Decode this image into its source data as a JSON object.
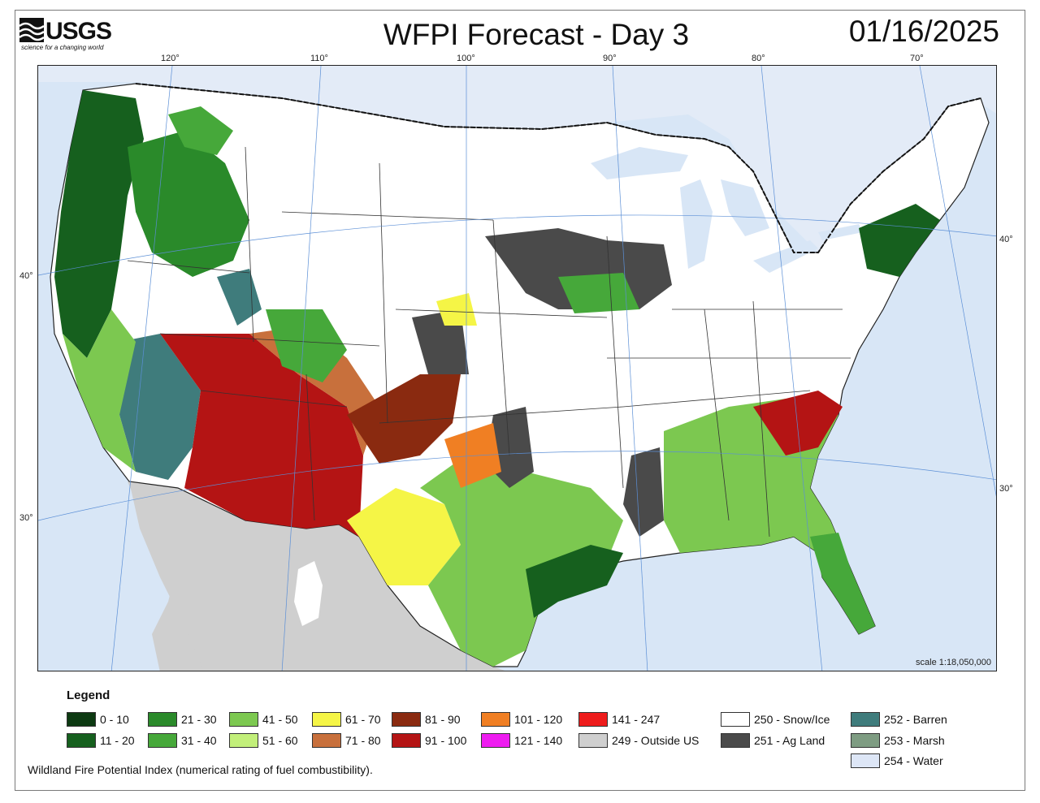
{
  "header": {
    "logo_text": "USGS",
    "logo_tagline": "science for a changing world",
    "title": "WFPI Forecast - Day 3",
    "date": "01/16/2025"
  },
  "graticule": {
    "longitudes": [
      "120°",
      "110°",
      "100°",
      "90°",
      "80°",
      "70°"
    ],
    "latitudes": [
      "40°",
      "30°"
    ]
  },
  "map": {
    "scale": "scale 1:18,050,000"
  },
  "legend": {
    "title": "Legend",
    "items": [
      {
        "label": "0 - 10",
        "color": "#0d3a12"
      },
      {
        "label": "11 - 20",
        "color": "#16601e"
      },
      {
        "label": "21 - 30",
        "color": "#2a8a2a"
      },
      {
        "label": "31 - 40",
        "color": "#46a83a"
      },
      {
        "label": "41 - 50",
        "color": "#7cc850"
      },
      {
        "label": "51 - 60",
        "color": "#c2ef7a"
      },
      {
        "label": "61 - 70",
        "color": "#f5f546"
      },
      {
        "label": "71 - 80",
        "color": "#c8703c"
      },
      {
        "label": "81 - 90",
        "color": "#8a2a10"
      },
      {
        "label": "91 - 100",
        "color": "#b41414"
      },
      {
        "label": "101 - 120",
        "color": "#f07f23"
      },
      {
        "label": "121 - 140",
        "color": "#ee1cf0"
      },
      {
        "label": "141 - 247",
        "color": "#ee1c1c"
      },
      {
        "label": "249 - Outside US",
        "color": "#cfcfcf"
      },
      {
        "label": "250 - Snow/Ice",
        "color": "#ffffff"
      },
      {
        "label": "251 - Ag Land",
        "color": "#4a4a4a"
      },
      {
        "label": "252 - Barren",
        "color": "#3f7c7c"
      },
      {
        "label": "253 - Marsh",
        "color": "#7e9c82"
      },
      {
        "label": "254 - Water",
        "color": "#dde6f6"
      }
    ]
  },
  "footnote": "Wildland Fire Potential Index (numerical rating of fuel combustibility)."
}
